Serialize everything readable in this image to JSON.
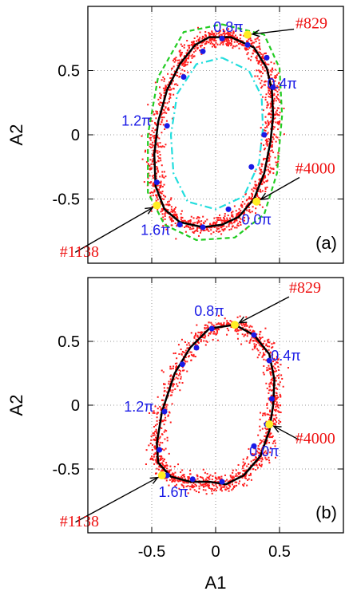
{
  "chart_data": [
    {
      "type": "scatter",
      "panel_label": "(a)",
      "ylabel": "A2",
      "xlim": [
        -1,
        1
      ],
      "ylim": [
        -1,
        1
      ],
      "x_ticks": [
        "-0.5",
        "0",
        "0.5"
      ],
      "y_ticks": [
        "0.5",
        "0",
        "-0.5"
      ],
      "grid": true,
      "series": [
        {
          "style": "solid-black",
          "x": [
            0.08,
            0.12,
            0.3,
            0.4,
            0.44,
            0.45,
            0.43,
            0.38,
            0.3,
            0.18,
            0.05,
            -0.1,
            -0.28,
            -0.4,
            -0.47,
            -0.48,
            -0.45,
            -0.38,
            -0.28,
            -0.16,
            -0.05,
            0.08
          ],
          "y": [
            0.76,
            0.76,
            0.68,
            0.52,
            0.35,
            0.15,
            -0.05,
            -0.3,
            -0.5,
            -0.64,
            -0.7,
            -0.72,
            -0.68,
            -0.58,
            -0.4,
            -0.15,
            0.1,
            0.35,
            0.55,
            0.7,
            0.76,
            0.76
          ]
        },
        {
          "style": "dashed-green",
          "x": [
            0.05,
            0.38,
            0.5,
            0.52,
            0.48,
            0.38,
            0.15,
            -0.15,
            -0.4,
            -0.53,
            -0.53,
            -0.45,
            -0.25,
            0.05
          ],
          "y": [
            0.86,
            0.78,
            0.52,
            0.15,
            -0.3,
            -0.62,
            -0.8,
            -0.82,
            -0.7,
            -0.45,
            0.0,
            0.45,
            0.8,
            0.86
          ]
        },
        {
          "style": "dashdot-cyan",
          "x": [
            0.05,
            0.26,
            0.36,
            0.37,
            0.34,
            0.22,
            0.0,
            -0.22,
            -0.33,
            -0.35,
            -0.3,
            -0.15,
            0.05
          ],
          "y": [
            0.6,
            0.5,
            0.3,
            0.05,
            -0.22,
            -0.48,
            -0.58,
            -0.52,
            -0.3,
            0.0,
            0.32,
            0.55,
            0.6
          ]
        }
      ],
      "phase_points": {
        "x": [
          0.05,
          0.25,
          0.4,
          0.45,
          0.38,
          0.28,
          0.1,
          -0.1,
          -0.28,
          -0.45,
          -0.46,
          -0.38,
          -0.25,
          -0.1
        ],
        "y": [
          0.75,
          0.7,
          0.6,
          0.37,
          0.0,
          -0.25,
          -0.58,
          -0.72,
          -0.7,
          -0.55,
          -0.37,
          0.07,
          0.45,
          0.65
        ]
      },
      "phase_labels": [
        {
          "text": "0.8π",
          "x": 0.1,
          "y": 0.8
        },
        {
          "text": "0.4π",
          "x": 0.52,
          "y": 0.36
        },
        {
          "text": "1.2π",
          "x": -0.62,
          "y": 0.07
        },
        {
          "text": "1.6π",
          "x": -0.47,
          "y": -0.78
        },
        {
          "text": "0.0π",
          "x": 0.32,
          "y": -0.7
        }
      ],
      "markers": [
        {
          "label": "#829",
          "x": 0.25,
          "y": 0.78,
          "label_x": 0.75,
          "label_y": 0.83
        },
        {
          "label": "#4000",
          "x": 0.32,
          "y": -0.52,
          "label_x": 0.78,
          "label_y": -0.3
        },
        {
          "label": "#1138",
          "x": -0.46,
          "y": -0.55,
          "label_x": -1.22,
          "label_y": -0.95
        }
      ]
    },
    {
      "type": "scatter",
      "panel_label": "(b)",
      "xlabel": "A1",
      "ylabel": "A2",
      "xlim": [
        -1,
        1
      ],
      "ylim": [
        -1,
        1
      ],
      "x_ticks": [
        "-0.5",
        "0",
        "0.5"
      ],
      "y_ticks": [
        "0.5",
        "0",
        "-0.5"
      ],
      "grid": true,
      "series": [
        {
          "style": "solid-black",
          "x": [
            -0.05,
            0.15,
            0.3,
            0.42,
            0.46,
            0.45,
            0.42,
            0.35,
            0.22,
            0.08,
            -0.05,
            -0.2,
            -0.35,
            -0.45,
            -0.46,
            -0.42,
            -0.32,
            -0.2,
            -0.05
          ],
          "y": [
            0.6,
            0.63,
            0.55,
            0.4,
            0.2,
            0.0,
            -0.2,
            -0.4,
            -0.55,
            -0.62,
            -0.6,
            -0.6,
            -0.56,
            -0.45,
            -0.3,
            -0.05,
            0.25,
            0.45,
            0.6
          ]
        }
      ],
      "phase_points": {
        "x": [
          -0.03,
          0.15,
          0.3,
          0.42,
          0.44,
          0.4,
          0.3,
          0.05,
          -0.18,
          -0.38,
          -0.44,
          -0.4,
          -0.26,
          -0.15
        ],
        "y": [
          0.6,
          0.63,
          0.55,
          0.35,
          0.05,
          -0.15,
          -0.32,
          -0.6,
          -0.58,
          -0.55,
          -0.35,
          -0.05,
          0.32,
          0.45
        ]
      },
      "phase_labels": [
        {
          "text": "0.8π",
          "x": -0.05,
          "y": 0.7
        },
        {
          "text": "0.4π",
          "x": 0.55,
          "y": 0.35
        },
        {
          "text": "1.2π",
          "x": -0.6,
          "y": -0.05
        },
        {
          "text": "1.6π",
          "x": -0.33,
          "y": -0.72
        },
        {
          "text": "0.0π",
          "x": 0.38,
          "y": -0.4
        }
      ],
      "markers": [
        {
          "label": "#829",
          "x": 0.15,
          "y": 0.63,
          "label_x": 0.7,
          "label_y": 0.88
        },
        {
          "label": "#4000",
          "x": 0.42,
          "y": -0.15,
          "label_x": 0.78,
          "label_y": -0.3
        },
        {
          "label": "#1138",
          "x": -0.42,
          "y": -0.55,
          "label_x": -1.22,
          "label_y": -0.95
        }
      ]
    }
  ],
  "colors": {
    "scatter": "#ff1a1a",
    "limit_cycle": "#000000",
    "dashed_outer": "#22cc22",
    "dashdot_inner": "#22dddd",
    "phase_point": "#1a1ae6",
    "marker_point": "#ffee22",
    "arrow": "#000000"
  }
}
